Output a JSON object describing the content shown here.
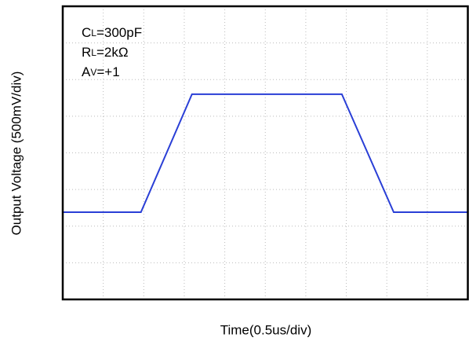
{
  "chart_data": {
    "type": "line",
    "x_label": "Time(0.5us/div)",
    "y_label": "Output Voltage (500mV/div)",
    "annotations": [
      {
        "main": "C",
        "sub": "L",
        "rest": "=300pF"
      },
      {
        "main": "R",
        "sub": "L",
        "rest": "=2kΩ"
      },
      {
        "main": "A",
        "sub": "V",
        "rest": "=+1"
      }
    ],
    "x": [
      0,
      1.93,
      3.19,
      6.89,
      8.17,
      10
    ],
    "series": [
      {
        "color": "#2a3fd6",
        "values": [
          2.38,
          2.38,
          5.6,
          5.6,
          2.38,
          2.38
        ]
      }
    ],
    "xlim": [
      0,
      10
    ],
    "xticks": [
      1,
      2,
      3,
      4,
      5,
      6,
      7,
      8,
      9
    ],
    "ylim": [
      0,
      8
    ],
    "yticks": [
      1,
      2,
      3,
      4,
      5,
      6,
      7
    ],
    "grid": true
  }
}
